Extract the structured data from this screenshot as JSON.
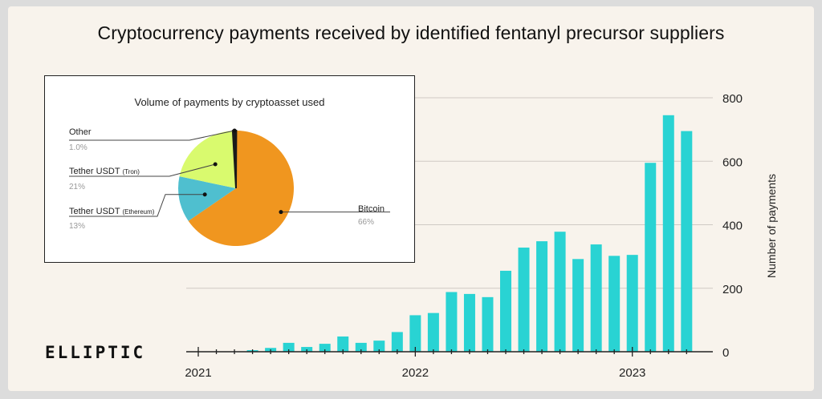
{
  "title": "Cryptocurrency payments received by identified fentanyl precursor suppliers",
  "brand": "ELLIPTIC",
  "colors": {
    "bar": "#29d3d3",
    "bitcoin": "#f0961f",
    "tron": "#d9fa6e",
    "ethereum": "#4fbfcf",
    "other": "#1a1a1a"
  },
  "chart_data": [
    {
      "type": "bar",
      "title": "",
      "xlabel": "",
      "ylabel": "Number of payments",
      "ylim": [
        0,
        800
      ],
      "yticks": [
        0,
        200,
        400,
        600,
        800
      ],
      "x_tick_labels": [
        "2021",
        "2022",
        "2023"
      ],
      "grid": true,
      "categories": [
        "2021-01",
        "2021-02",
        "2021-03",
        "2021-04",
        "2021-05",
        "2021-06",
        "2021-07",
        "2021-08",
        "2021-09",
        "2021-10",
        "2021-11",
        "2021-12",
        "2022-01",
        "2022-02",
        "2022-03",
        "2022-04",
        "2022-05",
        "2022-06",
        "2022-07",
        "2022-08",
        "2022-09",
        "2022-10",
        "2022-11",
        "2022-12",
        "2023-01",
        "2023-02",
        "2023-03",
        "2023-04"
      ],
      "values": [
        0,
        0,
        0,
        5,
        12,
        28,
        15,
        25,
        48,
        28,
        35,
        62,
        115,
        122,
        188,
        182,
        172,
        255,
        328,
        348,
        378,
        292,
        338,
        302,
        305,
        595,
        745,
        695
      ]
    },
    {
      "type": "pie",
      "title": "Volume of payments by cryptoasset used",
      "slices": [
        {
          "label": "Bitcoin",
          "suffix": "",
          "value": 66,
          "pct": "66%"
        },
        {
          "label": "Tether USDT",
          "suffix": "(Ethereum)",
          "value": 13,
          "pct": "13%"
        },
        {
          "label": "Tether USDT",
          "suffix": "(Tron)",
          "value": 21,
          "pct": "21%"
        },
        {
          "label": "Other",
          "suffix": "",
          "value": 1,
          "pct": "1.0%"
        }
      ]
    }
  ]
}
